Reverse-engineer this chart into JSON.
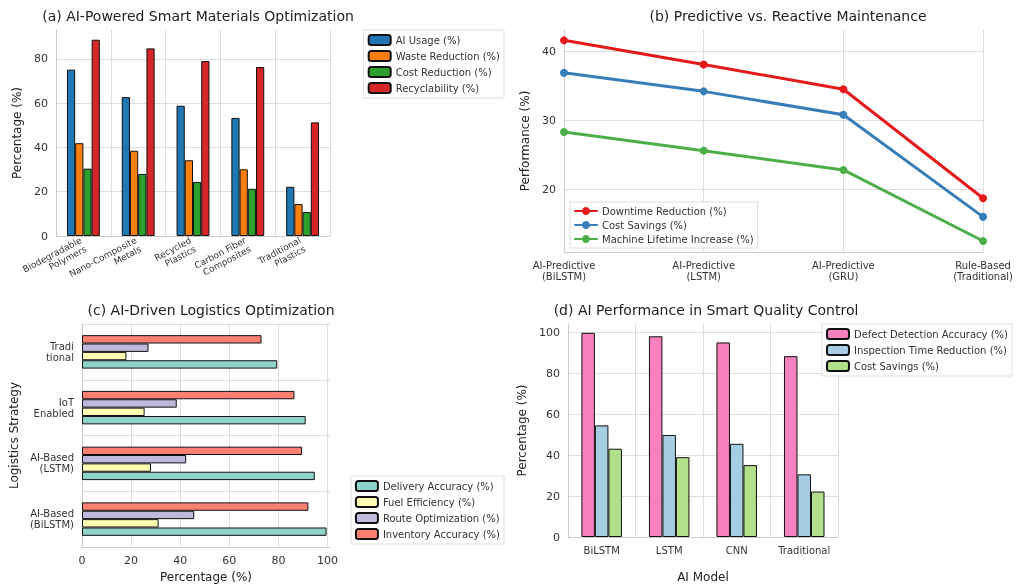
{
  "chart_data": [
    {
      "type": "bar",
      "title": "(a) AI-Powered Smart Materials Optimization",
      "ylabel": "Percentage (%)",
      "categories": [
        "Biodegradable\nPolymers",
        "Nano-Composite\nMetals",
        "Recycled\nPlastics",
        "Carbon Fiber\nComposites",
        "Traditional\nPlastics"
      ],
      "series": [
        {
          "name": "AI Usage (%)",
          "color": "#1f77b4",
          "values": [
            75.1,
            62.7,
            58.8,
            53.3,
            22.2
          ]
        },
        {
          "name": "Waste Reduction (%)",
          "color": "#ff7f0e",
          "values": [
            41.9,
            38.5,
            34.2,
            30.1,
            14.4
          ]
        },
        {
          "name": "Cost Reduction (%)",
          "color": "#2ca02c",
          "values": [
            30.4,
            28.0,
            24.4,
            21.3,
            10.8
          ]
        },
        {
          "name": "Recyclability (%)",
          "color": "#d62728",
          "values": [
            88.6,
            84.7,
            79.0,
            76.3,
            51.3
          ]
        }
      ],
      "ylim": [
        0,
        93
      ],
      "yticks": [
        0,
        20,
        40,
        60,
        80
      ],
      "grid": true,
      "legend": "top right"
    },
    {
      "type": "line",
      "title": "(b) Predictive vs. Reactive Maintenance",
      "ylabel": "Performance (%)",
      "categories": [
        "AI-Predictive\n(BiLSTM)",
        "AI-Predictive\n(LSTM)",
        "AI-Predictive\n(GRU)",
        "Rule-Based\n(Traditional)"
      ],
      "series": [
        {
          "name": "Downtime Reduction (%)",
          "color": "#e41a1c",
          "values": [
            41.6,
            38.1,
            34.5,
            18.7
          ]
        },
        {
          "name": "Cost Savings (%)",
          "color": "#377eb8",
          "values": [
            36.9,
            34.2,
            30.8,
            16.0
          ]
        },
        {
          "name": "Machine Lifetime Increase (%)",
          "color": "#4daf4a",
          "values": [
            28.3,
            25.6,
            22.8,
            12.5
          ]
        }
      ],
      "ylim": [
        10.9,
        43.1
      ],
      "yticks": [
        20,
        30,
        40
      ],
      "grid": true,
      "legend": "bottom left",
      "marker": "circle",
      "line_style": "solid"
    },
    {
      "type": "bar",
      "orientation": "horizontal",
      "title": "(c) AI-Driven Logistics Optimization",
      "xlabel": "Percentage (%)",
      "ylabel": "Logistics Strategy",
      "categories": [
        "Tradi\ntional",
        "IoT\nEnabled",
        "AI-Based\n(LSTM)",
        "AI-Based\n(BiLSTM)"
      ],
      "series": [
        {
          "name": "Delivery Accuracy (%)",
          "color": "#8dd3c7",
          "values": [
            79.5,
            91.1,
            94.8,
            99.6
          ]
        },
        {
          "name": "Fuel Efficiency (%)",
          "color": "#ffffb3",
          "values": [
            18.1,
            25.5,
            28.1,
            31.2
          ]
        },
        {
          "name": "Route Optimization (%)",
          "color": "#bebada",
          "values": [
            27.1,
            38.6,
            42.4,
            45.7
          ]
        },
        {
          "name": "Inventory Accuracy (%)",
          "color": "#fb8072",
          "values": [
            73.1,
            86.5,
            89.6,
            92.2
          ]
        }
      ],
      "xlim": [
        0,
        101
      ],
      "xticks": [
        0,
        20,
        40,
        60,
        80,
        100
      ],
      "grid": true,
      "legend": "bottom right"
    },
    {
      "type": "bar",
      "title": "(d) AI Performance in Smart Quality Control",
      "xlabel": "AI Model",
      "ylabel": "Percentage (%)",
      "categories": [
        "BiLSTM",
        "LSTM",
        "CNN",
        "Traditional"
      ],
      "series": [
        {
          "name": "Defect Detection Accuracy (%)",
          "color": "#f781bf",
          "values": [
            99.7,
            98.0,
            95.0,
            88.3
          ]
        },
        {
          "name": "Inspection Time Reduction (%)",
          "color": "#a6cee3",
          "values": [
            54.5,
            49.8,
            45.5,
            30.6
          ]
        },
        {
          "name": "Cost Savings (%)",
          "color": "#b2df8a",
          "values": [
            43.1,
            39.0,
            35.1,
            22.2
          ]
        }
      ],
      "ylim": [
        0,
        104
      ],
      "yticks": [
        0,
        20,
        40,
        60,
        80,
        100
      ],
      "grid": true,
      "legend": "top right"
    }
  ]
}
